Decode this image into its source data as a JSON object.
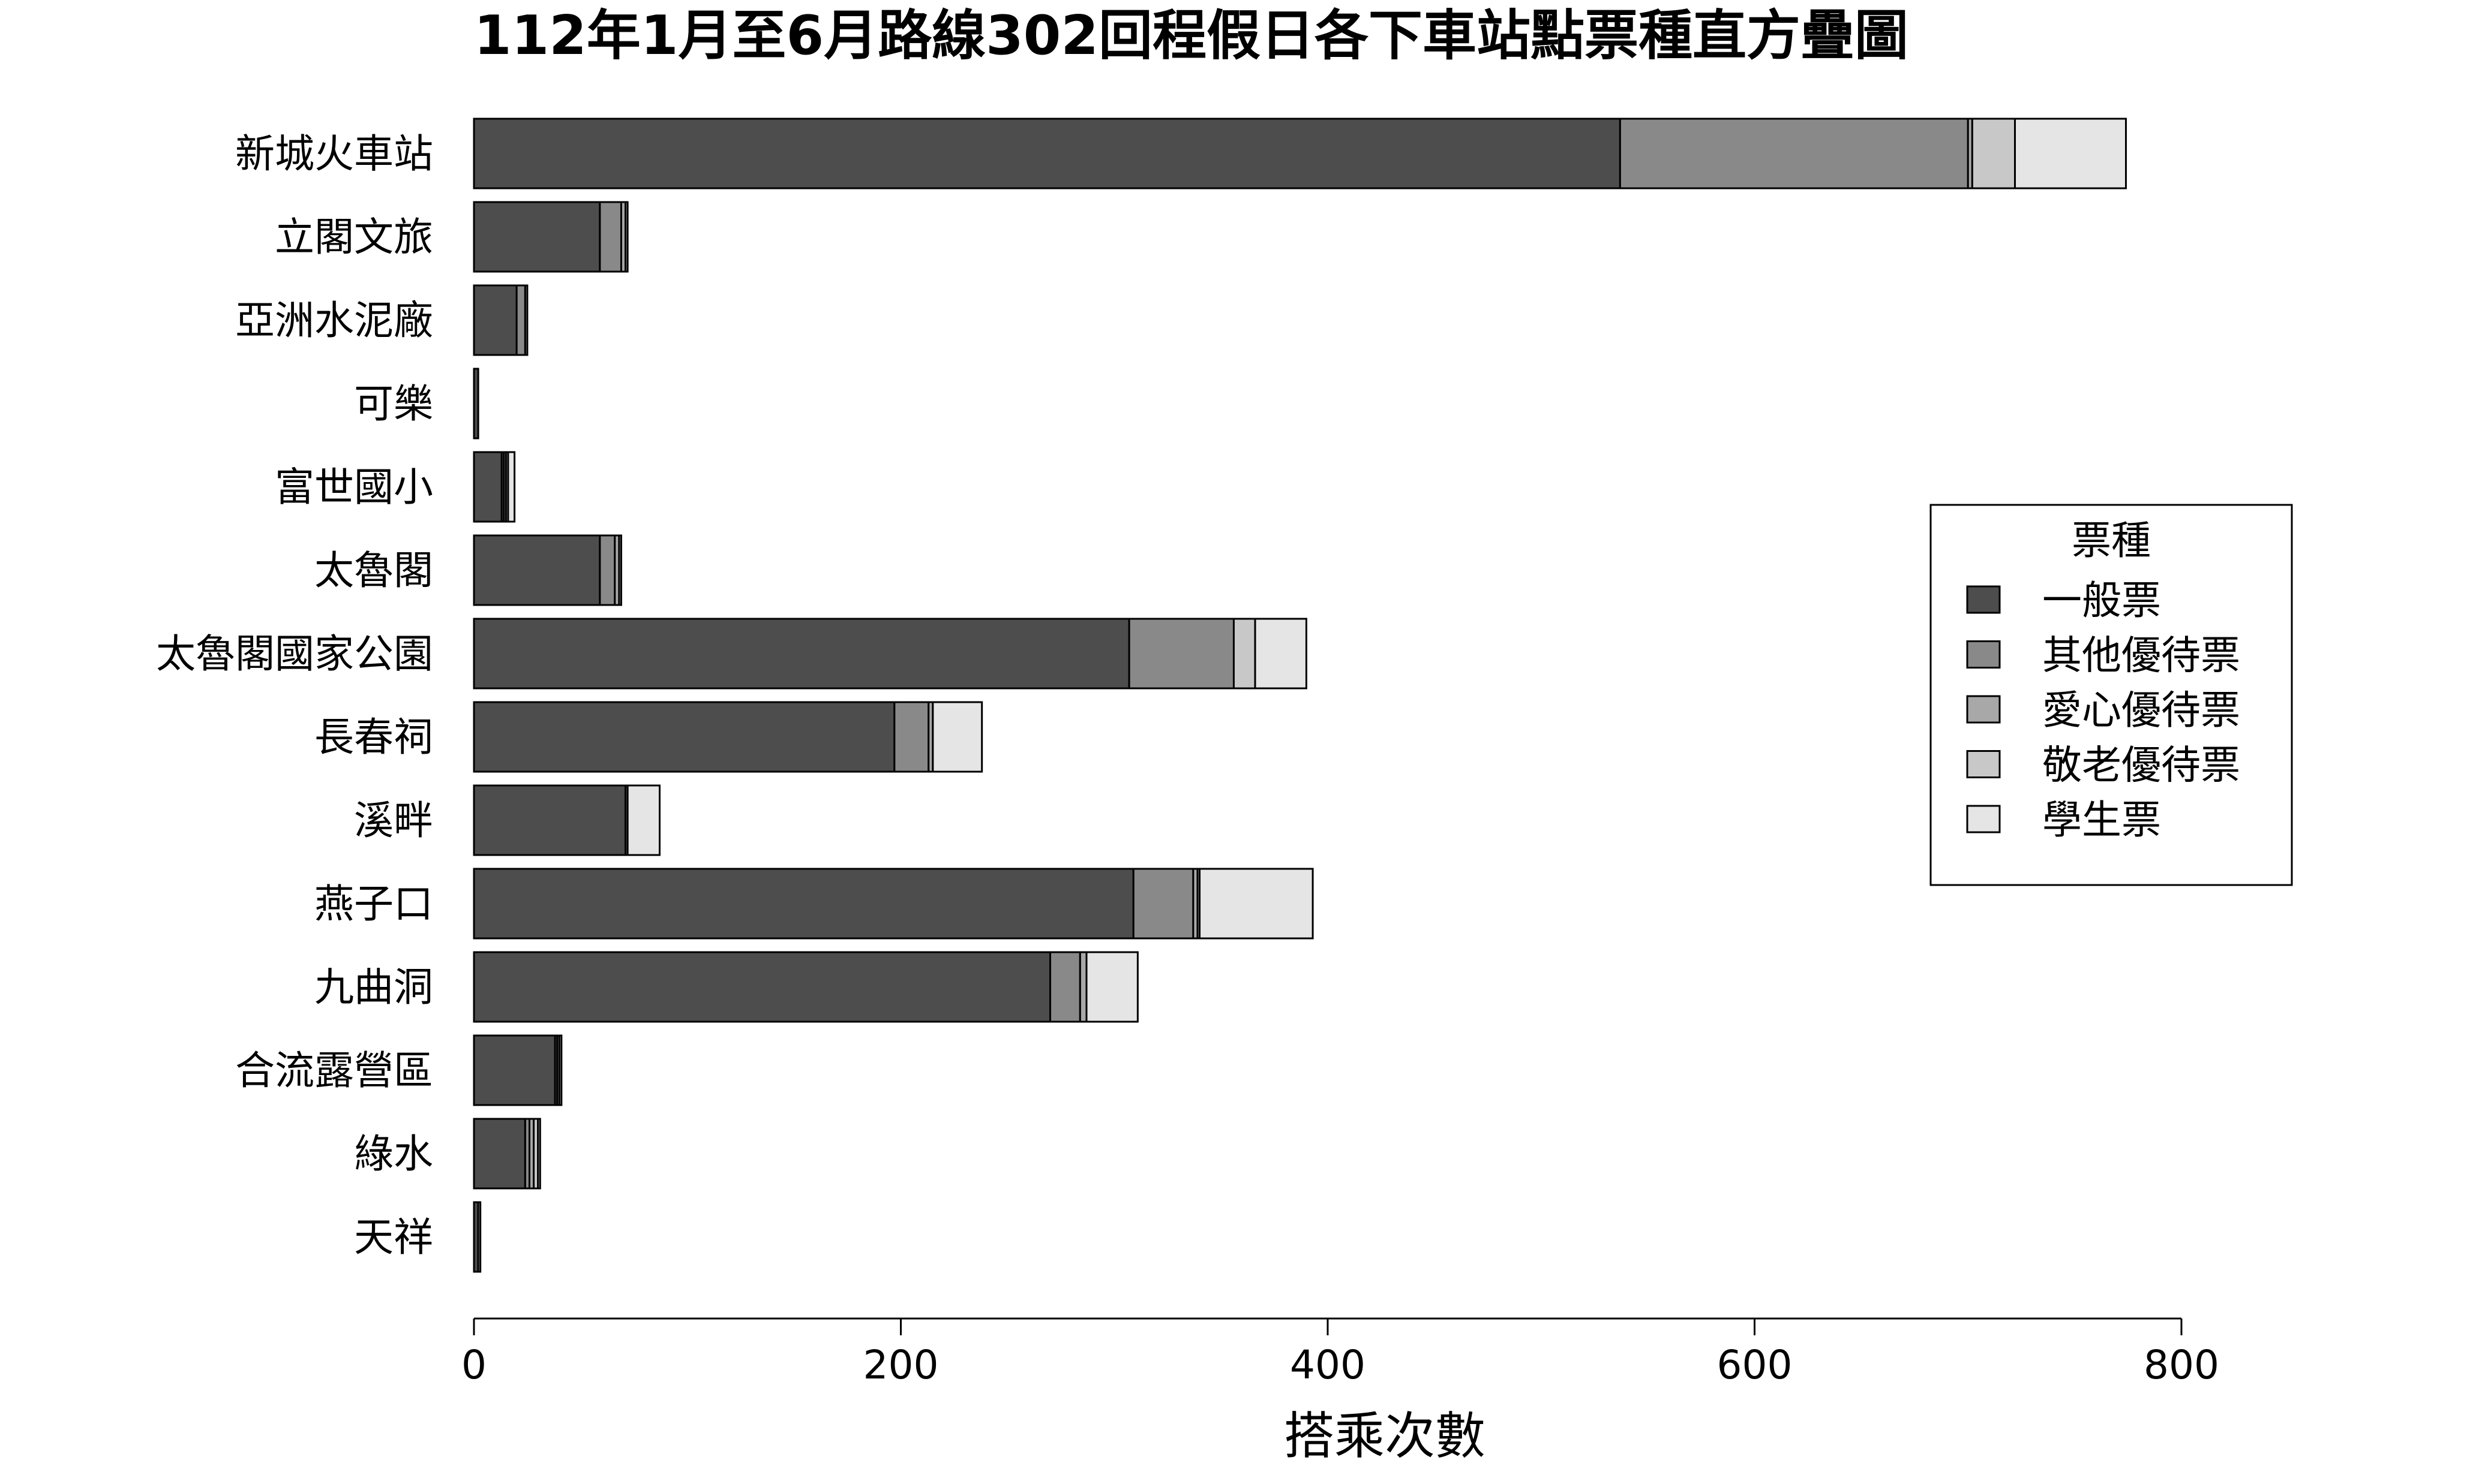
{
  "chart_data": {
    "type": "bar",
    "orientation": "horizontal",
    "stacked": true,
    "title": "112年1月至6月路線302回程假日各下車站點票種直方疊圖",
    "xlabel": "搭乘次數",
    "ylabel": "",
    "xlim": [
      0,
      800
    ],
    "xticks": [
      0,
      200,
      400,
      600,
      800
    ],
    "grid": false,
    "legend_title": "票種",
    "legend_position": "right",
    "categories": [
      "新城火車站",
      "立閣文旅",
      "亞洲水泥廠",
      "可樂",
      "富世國小",
      "太魯閣",
      "太魯閣國家公園",
      "長春祠",
      "溪畔",
      "燕子口",
      "九曲洞",
      "合流露營區",
      "綠水",
      "天祥"
    ],
    "series": [
      {
        "name": "一般票",
        "color": "#4d4d4d",
        "values": [
          537,
          59,
          20,
          2,
          13,
          59,
          307,
          197,
          71,
          309,
          270,
          38,
          24,
          2
        ]
      },
      {
        "name": "其他優待票",
        "color": "#898989",
        "values": [
          163,
          10,
          4,
          0,
          1,
          7,
          49,
          16,
          1,
          28,
          14,
          1,
          2,
          0
        ]
      },
      {
        "name": "愛心優待票",
        "color": "#a8a8a8",
        "values": [
          2,
          2,
          1,
          0,
          1,
          2,
          0,
          2,
          0,
          2,
          3,
          1,
          2,
          0
        ]
      },
      {
        "name": "敬老優待票",
        "color": "#c8c8c8",
        "values": [
          20,
          1,
          0,
          0,
          1,
          1,
          10,
          0,
          0,
          1,
          0,
          1,
          2,
          1
        ]
      },
      {
        "name": "學生票",
        "color": "#e5e5e5",
        "values": [
          52,
          0,
          0,
          0,
          3,
          0,
          24,
          23,
          15,
          53,
          24,
          0,
          1,
          0
        ]
      }
    ]
  }
}
